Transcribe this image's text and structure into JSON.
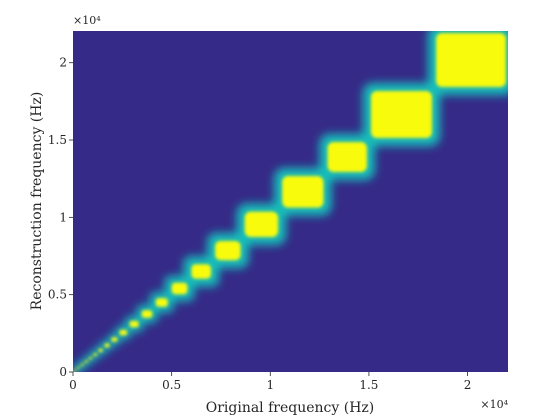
{
  "chart_data": {
    "type": "heatmap",
    "title": "",
    "xlabel": "Original frequency (Hz)",
    "ylabel": "Reconstruction frequency (Hz)",
    "xlim": [
      0,
      22050
    ],
    "ylim": [
      0,
      22050
    ],
    "x_exponent_label": "×10⁴",
    "y_exponent_label": "×10⁴",
    "x_ticks": [
      {
        "value": 0,
        "label": "0"
      },
      {
        "value": 5000,
        "label": "0.5"
      },
      {
        "value": 10000,
        "label": "1"
      },
      {
        "value": 15000,
        "label": "1.5"
      },
      {
        "value": 20000,
        "label": "2"
      }
    ],
    "y_ticks": [
      {
        "value": 0,
        "label": "0"
      },
      {
        "value": 5000,
        "label": "0.5"
      },
      {
        "value": 10000,
        "label": "1"
      },
      {
        "value": 15000,
        "label": "1.5"
      },
      {
        "value": 20000,
        "label": "2"
      }
    ],
    "grid": false,
    "colorscale": {
      "low": "#352a87",
      "mid": "#12bdb9",
      "high": "#f9fb0e"
    },
    "blocks": [
      {
        "f0": 0,
        "f1": 180
      },
      {
        "f0": 180,
        "f1": 370
      },
      {
        "f0": 370,
        "f1": 570
      },
      {
        "f0": 570,
        "f1": 780
      },
      {
        "f0": 780,
        "f1": 1000
      },
      {
        "f0": 1000,
        "f1": 1250
      },
      {
        "f0": 1250,
        "f1": 1550
      },
      {
        "f0": 1550,
        "f1": 1900
      },
      {
        "f0": 1900,
        "f1": 2300
      },
      {
        "f0": 2300,
        "f1": 2800
      },
      {
        "f0": 2800,
        "f1": 3400
      },
      {
        "f0": 3400,
        "f1": 4100
      },
      {
        "f0": 4100,
        "f1": 4900
      },
      {
        "f0": 4900,
        "f1": 5900
      },
      {
        "f0": 5900,
        "f1": 7100
      },
      {
        "f0": 7100,
        "f1": 8600
      },
      {
        "f0": 8600,
        "f1": 10500
      },
      {
        "f0": 10500,
        "f1": 12800
      },
      {
        "f0": 12800,
        "f1": 15000
      },
      {
        "f0": 15000,
        "f1": 18300
      },
      {
        "f0": 18300,
        "f1": 22050
      }
    ]
  }
}
